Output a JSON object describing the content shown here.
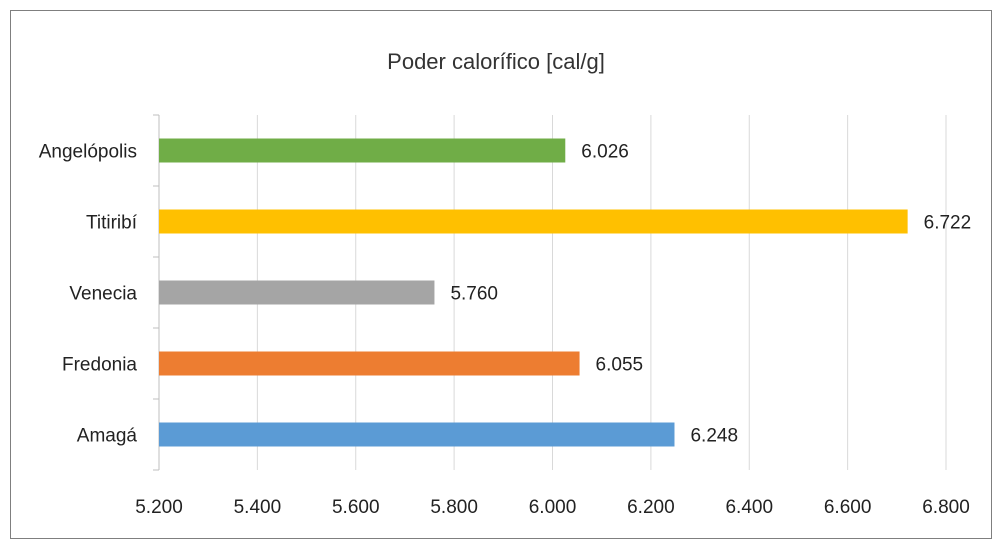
{
  "chart_data": {
    "type": "bar",
    "orientation": "horizontal",
    "title": "Poder calorífico [cal/g]",
    "categories": [
      "Angelópolis",
      "Titiribí",
      "Venecia",
      "Fredonia",
      "Amagá"
    ],
    "values": [
      6026,
      6722,
      5760,
      6055,
      6248
    ],
    "value_labels": [
      "6.026",
      "6.722",
      "5.760",
      "6.055",
      "6.248"
    ],
    "colors": [
      "#70ad47",
      "#ffc000",
      "#a5a5a5",
      "#ed7d31",
      "#5b9bd5"
    ],
    "xlim": [
      5200,
      6800
    ],
    "xticks": [
      5200,
      5400,
      5600,
      5800,
      6000,
      6200,
      6400,
      6600,
      6800
    ],
    "xtick_labels": [
      "5.200",
      "5.400",
      "5.600",
      "5.800",
      "6.000",
      "6.200",
      "6.400",
      "6.600",
      "6.800"
    ],
    "grid": true,
    "legend": "none"
  }
}
